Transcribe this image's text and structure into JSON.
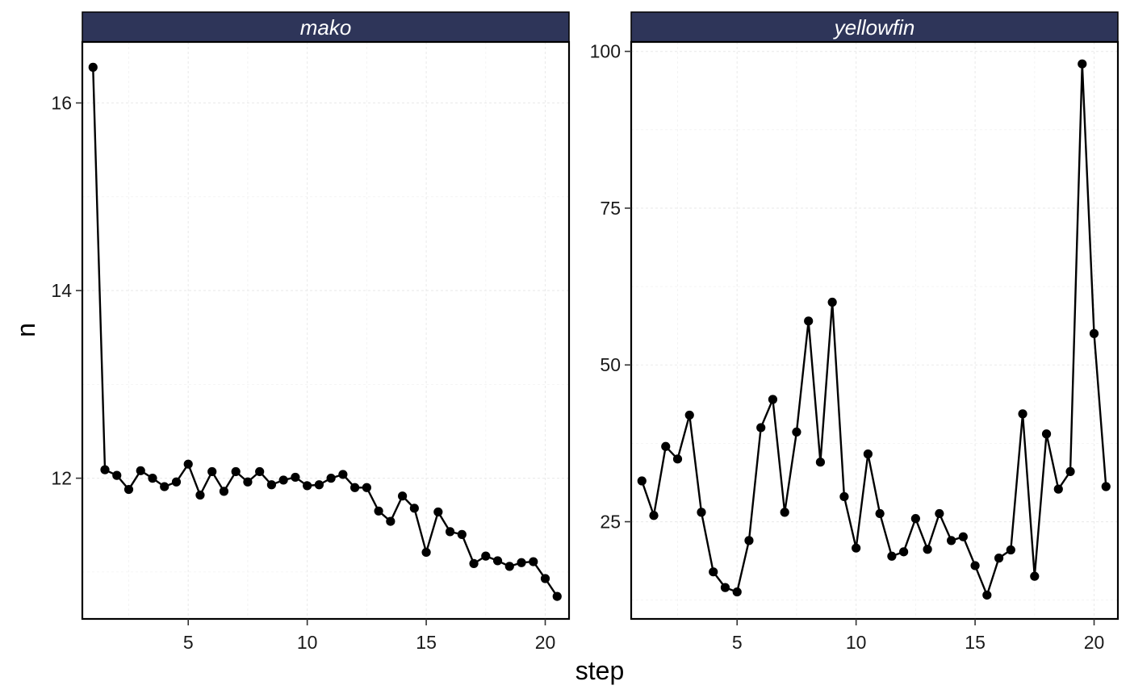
{
  "chart_data": {
    "type": "line",
    "xlabel": "step",
    "ylabel": "n",
    "x_ticks": [
      5,
      10,
      15,
      20
    ],
    "xlim": [
      0.55,
      21.0
    ],
    "colors": {
      "strip_fill": "#2e3559",
      "strip_text": "#ffffff",
      "line": "#000000",
      "point": "#000000",
      "panel_border": "#000000"
    },
    "facets": [
      {
        "name": "mako",
        "ylim": [
          10.5,
          16.65
        ],
        "y_ticks": [
          12,
          14,
          16
        ],
        "x": [
          1,
          1.5,
          2,
          2.5,
          3,
          3.5,
          4,
          4.5,
          5,
          5.5,
          6,
          6.5,
          7,
          7.5,
          8,
          8.5,
          9,
          9.5,
          10,
          10.5,
          11,
          11.5,
          12,
          12.5,
          13,
          13.5,
          14,
          14.5,
          15,
          15.5,
          16,
          16.5,
          17,
          17.5,
          18,
          18.5,
          19,
          19.5,
          20,
          20.5
        ],
        "y": [
          16.38,
          12.09,
          12.03,
          11.88,
          12.08,
          12.0,
          11.91,
          11.96,
          12.15,
          11.82,
          12.07,
          11.86,
          12.07,
          11.96,
          12.07,
          11.93,
          11.98,
          12.01,
          11.92,
          11.93,
          12.0,
          12.04,
          11.9,
          11.9,
          11.65,
          11.54,
          11.81,
          11.68,
          11.21,
          11.64,
          11.43,
          11.4,
          11.09,
          11.17,
          11.12,
          11.06,
          11.1,
          11.11,
          10.93,
          10.74
        ]
      },
      {
        "name": "yellowfin",
        "ylim": [
          9.5,
          101.5
        ],
        "y_ticks": [
          25,
          50,
          75,
          100
        ],
        "x": [
          1,
          1.5,
          2,
          2.5,
          3,
          3.5,
          4,
          4.5,
          5,
          5.5,
          6,
          6.5,
          7,
          7.5,
          8,
          8.5,
          9,
          9.5,
          10,
          10.5,
          11,
          11.5,
          12,
          12.5,
          13,
          13.5,
          14,
          14.5,
          15,
          15.5,
          16,
          16.5,
          17,
          17.5,
          18,
          18.5,
          19,
          19.5,
          20,
          20.5
        ],
        "y": [
          31.5,
          26.0,
          37.0,
          35.0,
          42.0,
          26.5,
          17.0,
          14.5,
          13.8,
          22.0,
          40.0,
          44.5,
          26.5,
          39.3,
          57.0,
          34.5,
          60.0,
          29.0,
          20.8,
          35.8,
          26.3,
          19.5,
          20.2,
          25.5,
          20.6,
          26.3,
          22.0,
          22.6,
          18.0,
          13.3,
          19.2,
          20.5,
          42.2,
          16.3,
          39.0,
          30.2,
          33.0,
          98.0,
          55.0,
          30.6
        ]
      }
    ]
  }
}
